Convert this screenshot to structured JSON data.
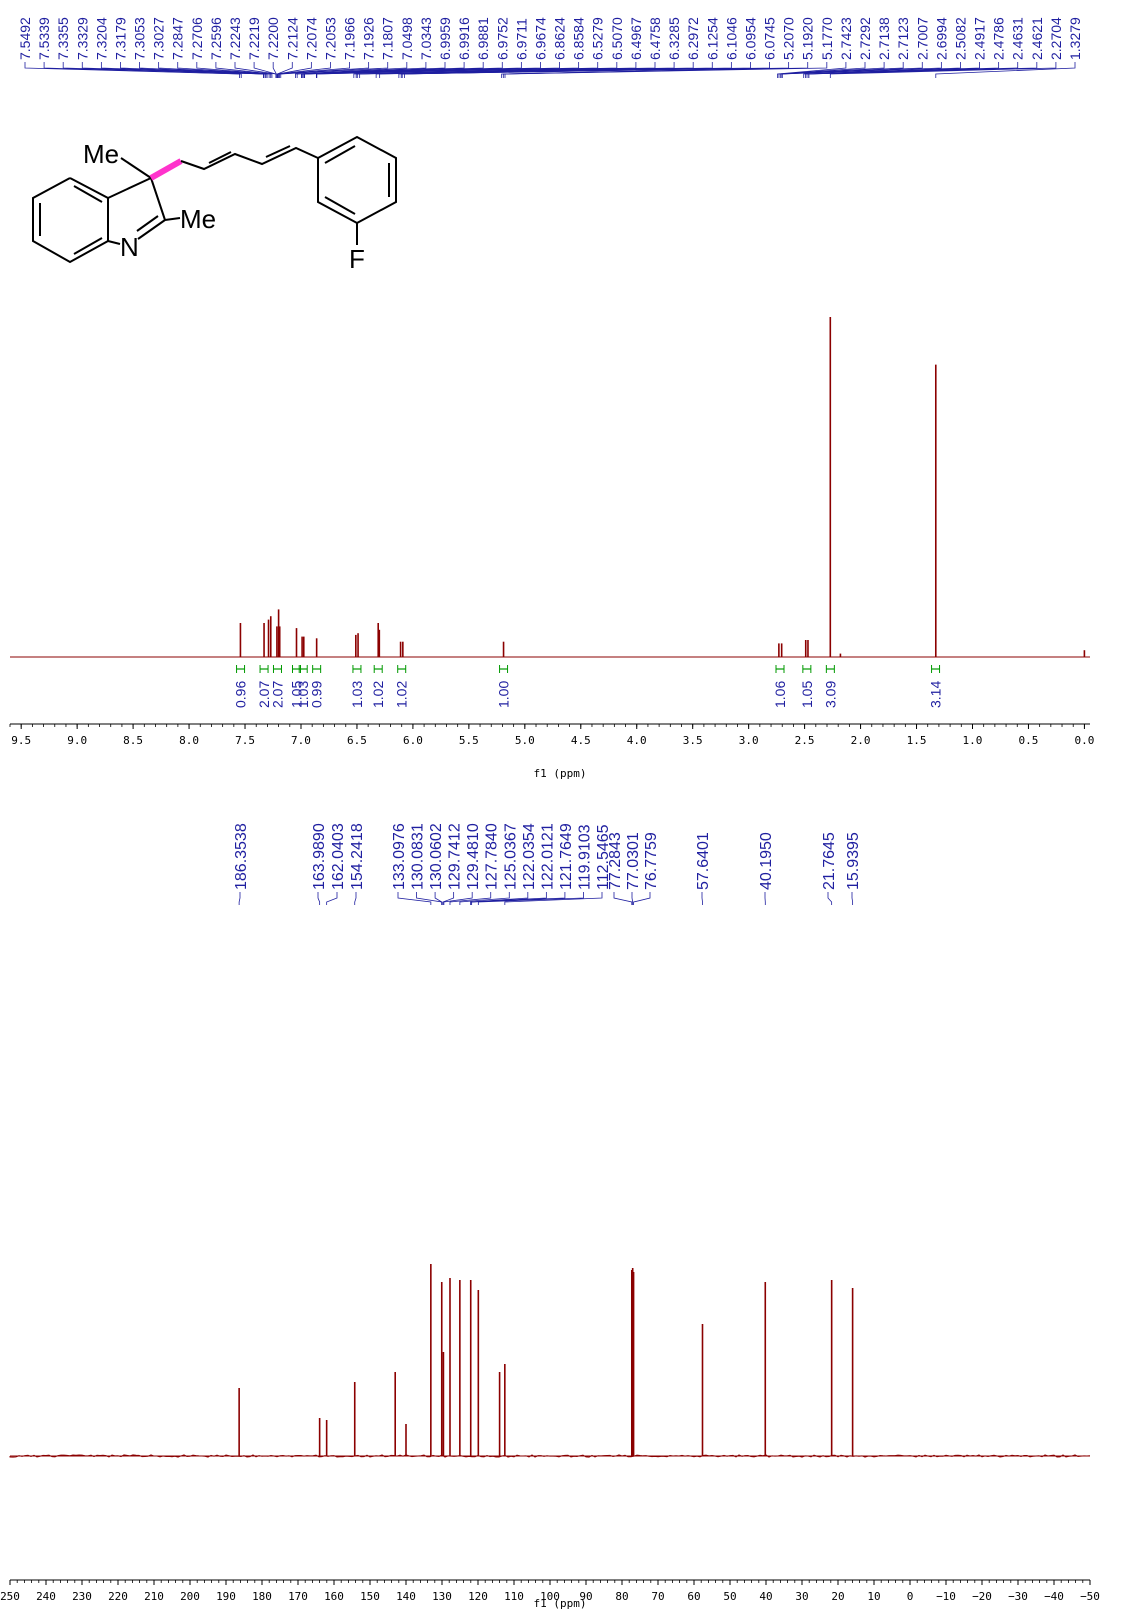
{
  "colors": {
    "spectrum": "#8B0000",
    "peak_label": "#1F1FA0",
    "integral": "#009900",
    "axis": "#000000",
    "highlight_bond": "#FF33CC"
  },
  "structure": {
    "labels": {
      "me_top": "Me",
      "me_side": "Me",
      "nitrogen": "N",
      "fluorine": "F"
    }
  },
  "chart_data": [
    {
      "type": "line",
      "nucleus": "1H",
      "xlabel": "f1 (ppm)",
      "xlim": [
        9.6,
        -0.05
      ],
      "x_ticks": [
        "9.5",
        "9.0",
        "8.5",
        "8.0",
        "7.5",
        "7.0",
        "6.5",
        "6.0",
        "5.5",
        "5.0",
        "4.5",
        "4.0",
        "3.5",
        "3.0",
        "2.5",
        "2.0",
        "1.5",
        "1.0",
        "0.5",
        "0.0"
      ],
      "peak_labels": [
        "7.5492",
        "7.5339",
        "7.3355",
        "7.3329",
        "7.3204",
        "7.3179",
        "7.3053",
        "7.3027",
        "7.2847",
        "7.2706",
        "7.2596",
        "7.2243",
        "7.2219",
        "7.2200",
        "7.2124",
        "7.2074",
        "7.2053",
        "7.1966",
        "7.1926",
        "7.1807",
        "7.0498",
        "7.0343",
        "6.9959",
        "6.9916",
        "6.9881",
        "6.9752",
        "6.9711",
        "6.9674",
        "6.8624",
        "6.8584",
        "6.5279",
        "6.5070",
        "6.4967",
        "6.4758",
        "6.3285",
        "6.2972",
        "6.1254",
        "6.1046",
        "6.0954",
        "6.0745",
        "5.2070",
        "5.1920",
        "5.1770",
        "2.7423",
        "2.7292",
        "2.7138",
        "2.7123",
        "2.7007",
        "2.6994",
        "2.5082",
        "2.4917",
        "2.4786",
        "2.4631",
        "2.4621",
        "2.2704",
        "1.3279"
      ],
      "peaks": [
        {
          "x": 7.541,
          "y": 0.1
        },
        {
          "x": 7.33,
          "y": 0.1
        },
        {
          "x": 7.29,
          "y": 0.11
        },
        {
          "x": 7.27,
          "y": 0.12
        },
        {
          "x": 7.215,
          "y": 0.09
        },
        {
          "x": 7.2,
          "y": 0.14
        },
        {
          "x": 7.19,
          "y": 0.09
        },
        {
          "x": 7.04,
          "y": 0.085
        },
        {
          "x": 6.99,
          "y": 0.06
        },
        {
          "x": 6.975,
          "y": 0.06
        },
        {
          "x": 6.86,
          "y": 0.055
        },
        {
          "x": 6.51,
          "y": 0.065
        },
        {
          "x": 6.49,
          "y": 0.07
        },
        {
          "x": 6.31,
          "y": 0.1
        },
        {
          "x": 6.3,
          "y": 0.08
        },
        {
          "x": 6.11,
          "y": 0.045
        },
        {
          "x": 6.09,
          "y": 0.045
        },
        {
          "x": 5.19,
          "y": 0.045
        },
        {
          "x": 2.73,
          "y": 0.04
        },
        {
          "x": 2.705,
          "y": 0.04
        },
        {
          "x": 2.49,
          "y": 0.05
        },
        {
          "x": 2.47,
          "y": 0.05
        },
        {
          "x": 2.2704,
          "y": 1.0
        },
        {
          "x": 2.18,
          "y": 0.01
        },
        {
          "x": 1.3279,
          "y": 0.86
        },
        {
          "x": 0.0,
          "y": 0.02
        }
      ],
      "integrals": [
        {
          "x": 7.54,
          "label": "0.96"
        },
        {
          "x": 7.33,
          "label": "2.07"
        },
        {
          "x": 7.21,
          "label": "2.07"
        },
        {
          "x": 7.04,
          "label": "1.05"
        },
        {
          "x": 6.98,
          "label": "1.03"
        },
        {
          "x": 6.86,
          "label": "0.99"
        },
        {
          "x": 6.5,
          "label": "1.03"
        },
        {
          "x": 6.31,
          "label": "1.02"
        },
        {
          "x": 6.1,
          "label": "1.02"
        },
        {
          "x": 5.19,
          "label": "1.00"
        },
        {
          "x": 2.72,
          "label": "1.06"
        },
        {
          "x": 2.48,
          "label": "1.05"
        },
        {
          "x": 2.27,
          "label": "3.09"
        },
        {
          "x": 1.33,
          "label": "3.14"
        }
      ]
    },
    {
      "type": "line",
      "nucleus": "13C",
      "xlabel": "f1 (ppm)",
      "xlim": [
        250,
        -50
      ],
      "x_ticks": [
        "250",
        "240",
        "230",
        "220",
        "210",
        "200",
        "190",
        "180",
        "170",
        "160",
        "150",
        "140",
        "130",
        "120",
        "110",
        "100",
        "90",
        "80",
        "70",
        "60",
        "50",
        "40",
        "30",
        "20",
        "10",
        "0",
        "−10",
        "−20",
        "−30",
        "−40",
        "−50"
      ],
      "peak_labels": [
        "186.3538",
        "163.9890",
        "162.0403",
        "154.2418",
        "133.0976",
        "130.0831",
        "130.0602",
        "129.7412",
        "129.4810",
        "127.7840",
        "125.0367",
        "122.0354",
        "122.0121",
        "121.7649",
        "119.9103",
        "112.5465",
        "77.2843",
        "77.0301",
        "76.7759",
        "57.6401",
        "40.1950",
        "21.7645",
        "15.9395"
      ],
      "peaks": [
        {
          "x": 186.35,
          "y": 0.34
        },
        {
          "x": 163.99,
          "y": 0.19
        },
        {
          "x": 162.04,
          "y": 0.18
        },
        {
          "x": 154.24,
          "y": 0.37
        },
        {
          "x": 143.0,
          "y": 0.42
        },
        {
          "x": 140.0,
          "y": 0.16
        },
        {
          "x": 133.1,
          "y": 0.96
        },
        {
          "x": 130.07,
          "y": 0.87
        },
        {
          "x": 129.6,
          "y": 0.52
        },
        {
          "x": 127.78,
          "y": 0.89
        },
        {
          "x": 125.04,
          "y": 0.88
        },
        {
          "x": 122.02,
          "y": 0.88
        },
        {
          "x": 119.91,
          "y": 0.83
        },
        {
          "x": 114.0,
          "y": 0.42
        },
        {
          "x": 112.55,
          "y": 0.46
        },
        {
          "x": 77.28,
          "y": 0.93
        },
        {
          "x": 77.03,
          "y": 0.94
        },
        {
          "x": 76.78,
          "y": 0.92
        },
        {
          "x": 57.64,
          "y": 0.66
        },
        {
          "x": 40.2,
          "y": 0.87
        },
        {
          "x": 21.76,
          "y": 0.88
        },
        {
          "x": 15.94,
          "y": 0.84
        }
      ]
    }
  ]
}
